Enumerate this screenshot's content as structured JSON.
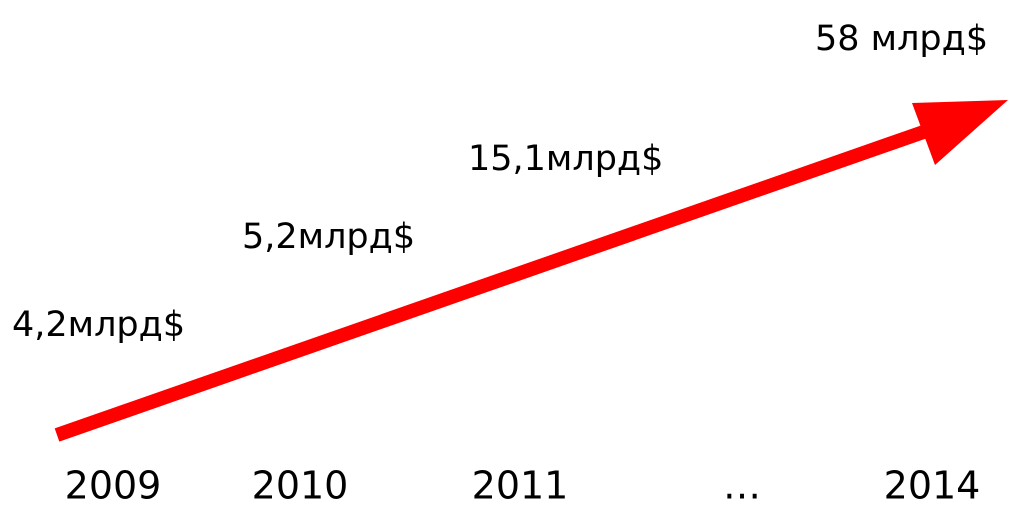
{
  "years": [
    "2009",
    "2010",
    "2011",
    "…",
    "2014"
  ],
  "labels": [
    "4,2млрд$",
    "5,2млрд$",
    "15,1млрд$",
    "58 млрд$"
  ]
}
